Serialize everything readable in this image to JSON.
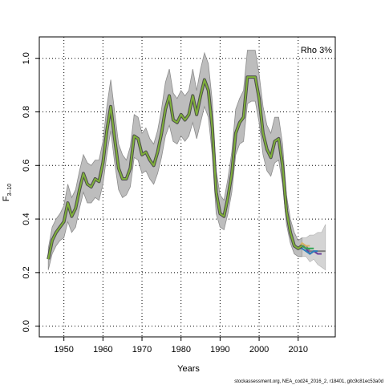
{
  "chart_data": {
    "type": "line",
    "title": "",
    "xlabel": "Years",
    "ylabel_main": "F",
    "ylabel_sub": "3–10",
    "annotation": "Rho 3%",
    "footer": "stockassessment.org, NEA_cod24_2016_2, r18401, gitc9c81ec53a0d",
    "xlim": [
      1943.7,
      2019.5
    ],
    "ylim": [
      -0.04,
      1.08
    ],
    "x_ticks": [
      1950,
      1960,
      1970,
      1980,
      1990,
      2000,
      2010
    ],
    "y_ticks": [
      0.0,
      0.2,
      0.4,
      0.6,
      0.8,
      1.0
    ],
    "y_tick_labels": [
      "0.0",
      "0.2",
      "0.4",
      "0.6",
      "0.8",
      "1.0"
    ],
    "grid": true,
    "colors": {
      "band": "#bdbdbd",
      "band_edge": "#8c8c8c",
      "main_outer": "#4d4d4d",
      "main_inner": "#7fb03a",
      "retro": [
        "#808080",
        "#6a3d9a",
        "#2c7fb8",
        "#31a354",
        "#d8b365"
      ]
    },
    "main_series": {
      "x": [
        1946,
        1947,
        1948,
        1949,
        1950,
        1951,
        1952,
        1953,
        1954,
        1955,
        1956,
        1957,
        1958,
        1959,
        1960,
        1961,
        1962,
        1963,
        1964,
        1965,
        1966,
        1967,
        1968,
        1969,
        1970,
        1971,
        1972,
        1973,
        1974,
        1975,
        1976,
        1977,
        1978,
        1979,
        1980,
        1981,
        1982,
        1983,
        1984,
        1985,
        1986,
        1987,
        1988,
        1989,
        1990,
        1991,
        1992,
        1993,
        1994,
        1995,
        1996,
        1997,
        1998,
        1999,
        2000,
        2001,
        2002,
        2003,
        2004,
        2005,
        2006,
        2007,
        2008,
        2009,
        2010,
        2011
      ],
      "y": [
        0.25,
        0.32,
        0.35,
        0.37,
        0.39,
        0.46,
        0.41,
        0.44,
        0.51,
        0.57,
        0.53,
        0.52,
        0.55,
        0.54,
        0.61,
        0.73,
        0.82,
        0.7,
        0.59,
        0.55,
        0.55,
        0.59,
        0.71,
        0.7,
        0.64,
        0.65,
        0.62,
        0.6,
        0.65,
        0.72,
        0.81,
        0.86,
        0.77,
        0.76,
        0.79,
        0.77,
        0.79,
        0.86,
        0.79,
        0.86,
        0.92,
        0.88,
        0.74,
        0.5,
        0.42,
        0.41,
        0.48,
        0.57,
        0.72,
        0.76,
        0.78,
        0.93,
        0.93,
        0.93,
        0.85,
        0.72,
        0.66,
        0.63,
        0.69,
        0.7,
        0.6,
        0.43,
        0.35,
        0.3,
        0.29,
        0.3
      ],
      "lower": [
        0.21,
        0.27,
        0.3,
        0.32,
        0.33,
        0.39,
        0.35,
        0.37,
        0.44,
        0.5,
        0.46,
        0.46,
        0.48,
        0.47,
        0.53,
        0.64,
        0.73,
        0.61,
        0.51,
        0.48,
        0.49,
        0.52,
        0.63,
        0.62,
        0.57,
        0.58,
        0.55,
        0.53,
        0.57,
        0.63,
        0.71,
        0.75,
        0.69,
        0.68,
        0.71,
        0.69,
        0.71,
        0.76,
        0.7,
        0.76,
        0.82,
        0.78,
        0.64,
        0.42,
        0.37,
        0.36,
        0.42,
        0.5,
        0.64,
        0.68,
        0.69,
        0.83,
        0.84,
        0.84,
        0.76,
        0.64,
        0.58,
        0.56,
        0.61,
        0.62,
        0.53,
        0.38,
        0.31,
        0.27,
        0.26,
        0.26
      ],
      "upper": [
        0.29,
        0.37,
        0.4,
        0.42,
        0.45,
        0.53,
        0.48,
        0.51,
        0.58,
        0.64,
        0.61,
        0.6,
        0.62,
        0.62,
        0.69,
        0.82,
        0.92,
        0.8,
        0.68,
        0.64,
        0.62,
        0.67,
        0.79,
        0.78,
        0.72,
        0.74,
        0.7,
        0.68,
        0.73,
        0.81,
        0.91,
        0.96,
        0.87,
        0.85,
        0.88,
        0.86,
        0.88,
        0.96,
        0.88,
        0.96,
        1.02,
        0.98,
        0.84,
        0.58,
        0.49,
        0.47,
        0.55,
        0.65,
        0.81,
        0.85,
        0.88,
        1.03,
        1.03,
        1.03,
        0.94,
        0.82,
        0.75,
        0.72,
        0.78,
        0.78,
        0.68,
        0.49,
        0.4,
        0.35,
        0.32,
        0.33
      ]
    },
    "band_tail": {
      "x": [
        2011,
        2012,
        2013,
        2014,
        2015,
        2016,
        2017
      ],
      "lower": [
        0.26,
        0.26,
        0.24,
        0.25,
        0.23,
        0.22,
        0.21
      ],
      "upper": [
        0.33,
        0.33,
        0.34,
        0.34,
        0.35,
        0.35,
        0.38
      ]
    },
    "retro_series": [
      {
        "x": [
          2011,
          2012,
          2013,
          2014,
          2015,
          2016,
          2017
        ],
        "y": [
          0.3,
          0.3,
          0.28,
          0.28,
          0.28,
          0.28,
          0.28
        ]
      },
      {
        "x": [
          2011,
          2012,
          2013,
          2014,
          2015,
          2016
        ],
        "y": [
          0.3,
          0.29,
          0.27,
          0.28,
          0.27,
          0.27
        ]
      },
      {
        "x": [
          2010,
          2011,
          2012,
          2013,
          2014,
          2015
        ],
        "y": [
          0.29,
          0.29,
          0.28,
          0.27,
          0.28,
          0.28
        ]
      },
      {
        "x": [
          2009,
          2010,
          2011,
          2012,
          2013,
          2014
        ],
        "y": [
          0.3,
          0.29,
          0.3,
          0.29,
          0.29,
          0.29
        ]
      },
      {
        "x": [
          2008,
          2009,
          2010,
          2011,
          2012,
          2013
        ],
        "y": [
          0.35,
          0.3,
          0.29,
          0.31,
          0.3,
          0.3
        ]
      }
    ]
  }
}
